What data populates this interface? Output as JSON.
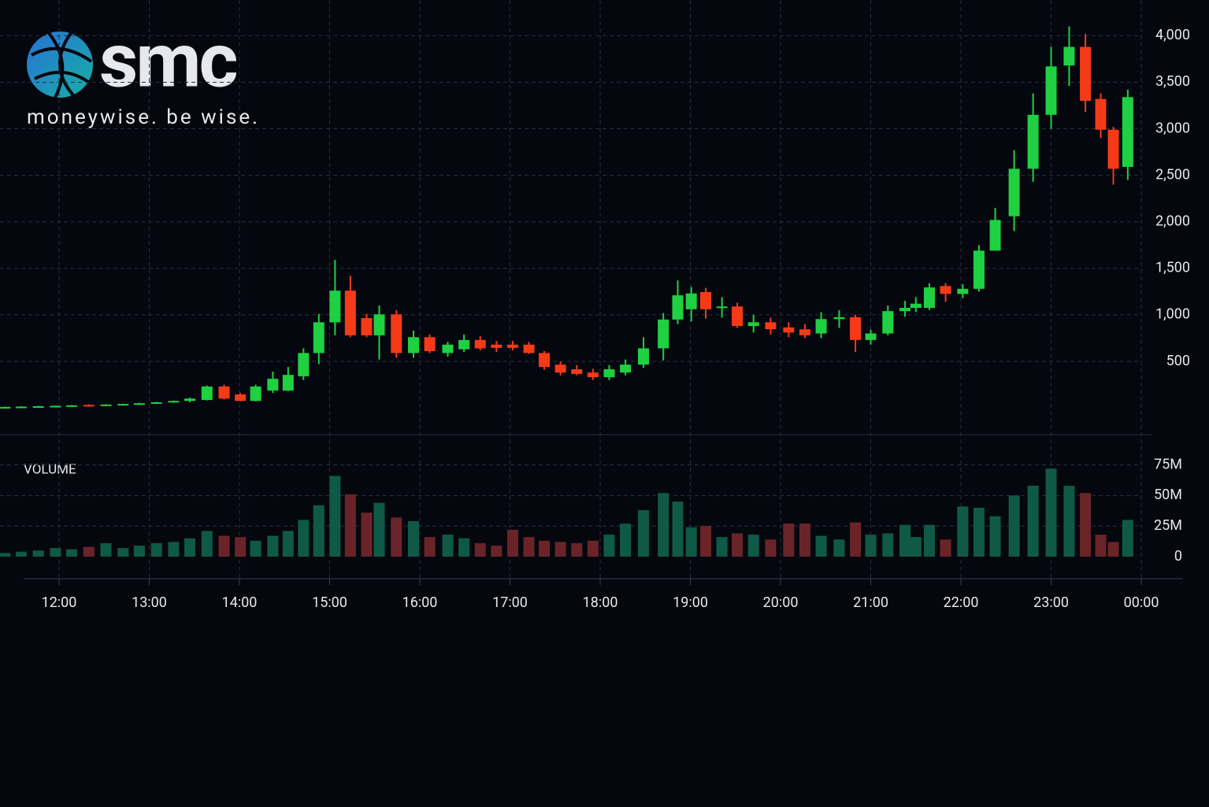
{
  "logo": {
    "name": "smc",
    "tagline": "moneywise. be wise."
  },
  "chart_data": {
    "type": "candlestick",
    "volume_title": "VOLUME",
    "x": [
      11.4,
      11.58,
      11.77,
      11.96,
      12.14,
      12.33,
      12.52,
      12.71,
      12.89,
      13.08,
      13.27,
      13.45,
      13.64,
      13.83,
      14.01,
      14.18,
      14.37,
      14.54,
      14.71,
      14.88,
      15.06,
      15.23,
      15.41,
      15.55,
      15.74,
      15.93,
      16.11,
      16.31,
      16.49,
      16.67,
      16.85,
      17.03,
      17.21,
      17.38,
      17.56,
      17.74,
      17.92,
      18.1,
      18.28,
      18.48,
      18.7,
      18.86,
      19.01,
      19.17,
      19.35,
      19.52,
      19.7,
      19.89,
      20.09,
      20.27,
      20.45,
      20.65,
      20.83,
      21.0,
      21.19,
      21.38,
      21.5,
      21.65,
      21.83,
      22.02,
      22.2,
      22.38,
      22.59,
      22.8,
      23.0,
      23.2,
      23.38,
      23.55,
      23.69,
      23.85
    ],
    "open": [
      5,
      10,
      14,
      18,
      22,
      32,
      24,
      36,
      42,
      50,
      60,
      75,
      85,
      230,
      145,
      75,
      186,
      186,
      340,
      590,
      920,
      1260,
      965,
      780,
      1005,
      590,
      760,
      590,
      630,
      730,
      680,
      680,
      680,
      590,
      465,
      415,
      380,
      330,
      380,
      465,
      640,
      950,
      1060,
      1245,
      1075,
      1090,
      880,
      920,
      865,
      845,
      800,
      955,
      975,
      730,
      800,
      1040,
      1075,
      1075,
      1310,
      1225,
      1280,
      1690,
      2060,
      2570,
      3150,
      3680,
      3880,
      3320,
      2990,
      2590
    ],
    "high": [
      15,
      18,
      22,
      25,
      30,
      38,
      40,
      45,
      55,
      65,
      80,
      110,
      240,
      250,
      160,
      250,
      390,
      440,
      640,
      1010,
      1590,
      1420,
      1010,
      1100,
      1050,
      830,
      790,
      710,
      790,
      770,
      720,
      720,
      710,
      610,
      500,
      460,
      420,
      460,
      520,
      760,
      1020,
      1370,
      1300,
      1290,
      1190,
      1130,
      1000,
      970,
      920,
      900,
      1030,
      1050,
      1000,
      840,
      1100,
      1150,
      1190,
      1340,
      1340,
      1330,
      1750,
      2150,
      2770,
      3380,
      3880,
      4100,
      4020,
      3380,
      3020,
      3420
    ],
    "low": [
      0,
      5,
      8,
      10,
      12,
      20,
      20,
      30,
      35,
      45,
      55,
      60,
      80,
      90,
      70,
      70,
      160,
      180,
      300,
      470,
      780,
      760,
      760,
      520,
      540,
      540,
      590,
      550,
      600,
      620,
      600,
      620,
      580,
      410,
      350,
      350,
      300,
      300,
      350,
      430,
      510,
      900,
      930,
      960,
      970,
      860,
      810,
      790,
      760,
      750,
      750,
      860,
      600,
      680,
      780,
      980,
      1030,
      1050,
      1140,
      1180,
      1250,
      1690,
      1900,
      2430,
      3000,
      3460,
      3180,
      2900,
      2400,
      2450
    ],
    "close": [
      10,
      14,
      18,
      22,
      28,
      24,
      36,
      42,
      50,
      60,
      75,
      100,
      230,
      100,
      75,
      230,
      313,
      355,
      590,
      920,
      1260,
      780,
      780,
      1005,
      590,
      760,
      610,
      680,
      730,
      640,
      645,
      645,
      590,
      440,
      380,
      365,
      330,
      415,
      465,
      640,
      950,
      1210,
      1230,
      1060,
      1090,
      880,
      920,
      845,
      810,
      780,
      955,
      975,
      730,
      800,
      1040,
      1075,
      1120,
      1295,
      1225,
      1280,
      1690,
      2020,
      2570,
      3150,
      3670,
      3880,
      3300,
      2990,
      2570,
      3340
    ],
    "volume": [
      3000000,
      4000000,
      5000000,
      7000000,
      6000000,
      8000000,
      11000000,
      7000000,
      9000000,
      11000000,
      12000000,
      15000000,
      21000000,
      17000000,
      16000000,
      13000000,
      17000000,
      21000000,
      30000000,
      42000000,
      66000000,
      51000000,
      36000000,
      44000000,
      32000000,
      29000000,
      16000000,
      18000000,
      15000000,
      11000000,
      9000000,
      22000000,
      16000000,
      13000000,
      12000000,
      11000000,
      13000000,
      18000000,
      27000000,
      38000000,
      52000000,
      45000000,
      24000000,
      25000000,
      16000000,
      19000000,
      18000000,
      14000000,
      27000000,
      27000000,
      17000000,
      14000000,
      28000000,
      18000000,
      19000000,
      26000000,
      16000000,
      26000000,
      14000000,
      41000000,
      40000000,
      33000000,
      50000000,
      58000000,
      72000000,
      58000000,
      52000000,
      18000000,
      12000000,
      30000000
    ],
    "xlim": [
      11.345,
      24.1
    ],
    "xticks": [
      {
        "value": 12,
        "label": "12:00"
      },
      {
        "value": 13,
        "label": "13:00"
      },
      {
        "value": 14,
        "label": "14:00"
      },
      {
        "value": 15,
        "label": "15:00"
      },
      {
        "value": 16,
        "label": "16:00"
      },
      {
        "value": 17,
        "label": "17:00"
      },
      {
        "value": 18,
        "label": "18:00"
      },
      {
        "value": 19,
        "label": "19:00"
      },
      {
        "value": 20,
        "label": "20:00"
      },
      {
        "value": 21,
        "label": "21:00"
      },
      {
        "value": 22,
        "label": "22:00"
      },
      {
        "value": 23,
        "label": "23:00"
      },
      {
        "value": 24,
        "label": "00:00"
      }
    ],
    "ylim": [
      -270,
      4130
    ],
    "yticks": [
      500,
      {
        "value": 1000,
        "label": "1,000"
      },
      {
        "value": 1500,
        "label": "1,500"
      },
      {
        "value": 2000,
        "label": "2,000"
      },
      {
        "value": 2500,
        "label": "2,500"
      },
      {
        "value": 3000,
        "label": "3,000"
      },
      {
        "value": 3500,
        "label": "3,500"
      },
      {
        "value": 4000,
        "label": "4,000"
      }
    ],
    "volume_ylim": [
      0,
      85000000
    ],
    "volume_yticks": [
      0,
      {
        "value": 25000000,
        "label": "25M"
      },
      {
        "value": 50000000,
        "label": "50M"
      },
      {
        "value": 75000000,
        "label": "75M"
      }
    ],
    "grid": true,
    "up_color": "#1fd041",
    "down_color": "#f53a17",
    "volume_up_color": "#0f5a47",
    "volume_down_color": "#6a2428"
  }
}
